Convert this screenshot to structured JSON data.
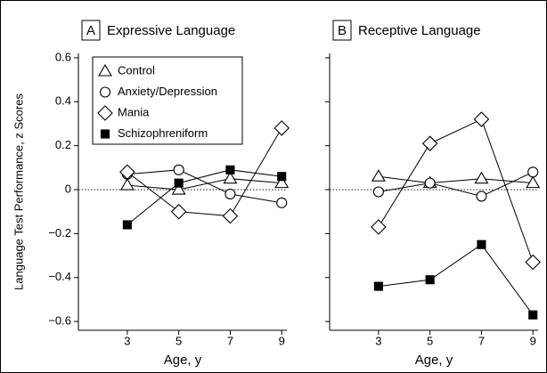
{
  "chart_data": [
    {
      "type": "line",
      "panel": "A",
      "title": "Expressive Language",
      "xlabel": "Age, y",
      "ylabel": "Language Test Performance, z Scores",
      "xlim": [
        1.1,
        9.2
      ],
      "xticks": [
        3,
        5,
        7,
        9
      ],
      "ylim": [
        -0.64,
        0.62
      ],
      "yticks": [
        {
          "value": -0.6,
          "label": "−0.6"
        },
        {
          "value": -0.4,
          "label": "−0.4"
        },
        {
          "value": -0.2,
          "label": "−0.2"
        },
        0,
        0.2,
        0.4,
        0.6
      ],
      "reference_line": 0,
      "legend": "upper left",
      "x": [
        3,
        5,
        7,
        9
      ],
      "series": [
        {
          "name": "Control",
          "marker": "triangle",
          "color": "#000",
          "fill": "#fff",
          "values": [
            0.02,
            0.0,
            0.05,
            0.03
          ]
        },
        {
          "name": "Anxiety/Depression",
          "marker": "circle",
          "color": "#000",
          "fill": "#fff",
          "values": [
            0.07,
            0.09,
            -0.02,
            -0.06
          ]
        },
        {
          "name": "Mania",
          "marker": "diamond",
          "color": "#000",
          "fill": "#fff",
          "values": [
            0.08,
            -0.1,
            -0.12,
            0.28
          ]
        },
        {
          "name": "Schizophreniform",
          "marker": "square",
          "color": "#000",
          "fill": "#000",
          "values": [
            -0.16,
            0.03,
            0.09,
            0.06
          ]
        }
      ]
    },
    {
      "type": "line",
      "panel": "B",
      "title": "Receptive Language",
      "xlabel": "Age, y",
      "xlim": [
        1.1,
        9.2
      ],
      "xticks": [
        3,
        5,
        7,
        9
      ],
      "ylim": [
        -0.64,
        0.62
      ],
      "yticks": [
        -0.6,
        -0.4,
        -0.2,
        0,
        0.2,
        0.4,
        0.6
      ],
      "reference_line": 0,
      "x": [
        3,
        5,
        7,
        9
      ],
      "series": [
        {
          "name": "Control",
          "marker": "triangle",
          "color": "#000",
          "fill": "#fff",
          "values": [
            0.06,
            0.03,
            0.05,
            0.03
          ]
        },
        {
          "name": "Anxiety/Depression",
          "marker": "circle",
          "color": "#000",
          "fill": "#fff",
          "values": [
            -0.01,
            0.03,
            -0.03,
            0.08
          ]
        },
        {
          "name": "Mania",
          "marker": "diamond",
          "color": "#000",
          "fill": "#fff",
          "values": [
            -0.17,
            0.21,
            0.32,
            -0.33
          ]
        },
        {
          "name": "Schizophreniform",
          "marker": "square",
          "color": "#000",
          "fill": "#000",
          "values": [
            -0.44,
            -0.41,
            -0.25,
            -0.57
          ]
        }
      ]
    }
  ]
}
